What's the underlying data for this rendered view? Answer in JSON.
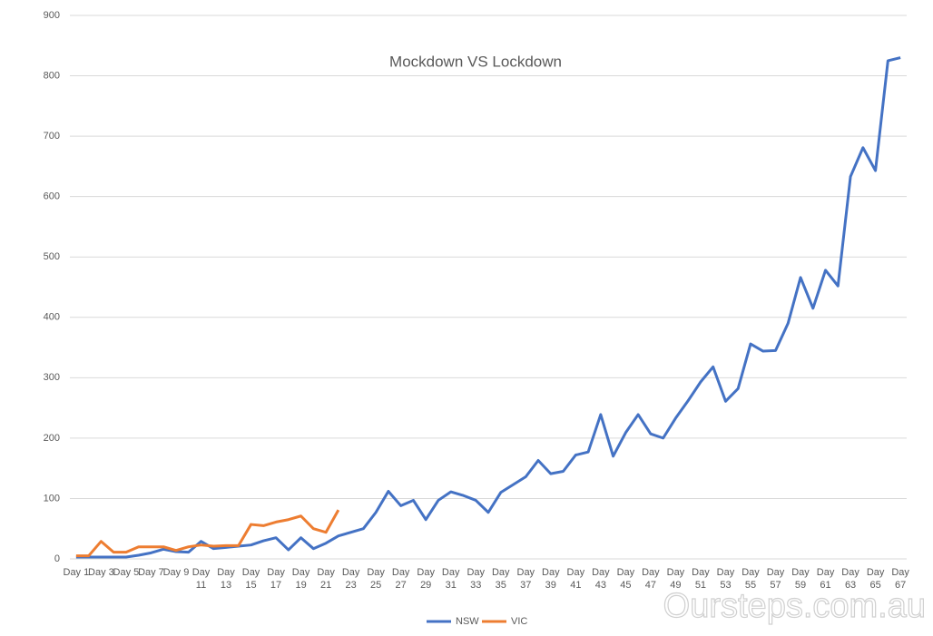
{
  "chart_data": {
    "type": "line",
    "title": "Mockdown VS Lockdown",
    "categories": [
      "Day 1",
      null,
      "Day 3",
      null,
      "Day 5",
      null,
      "Day 7",
      null,
      "Day 9",
      null,
      "Day 11",
      null,
      "Day 13",
      null,
      "Day 15",
      null,
      "Day 17",
      null,
      "Day 19",
      null,
      "Day 21",
      null,
      "Day 23",
      null,
      "Day 25",
      null,
      "Day 27",
      null,
      "Day 29",
      null,
      "Day 31",
      null,
      "Day 33",
      null,
      "Day 35",
      null,
      "Day 37",
      null,
      "Day 39",
      null,
      "Day 41",
      null,
      "Day 43",
      null,
      "Day 45",
      null,
      "Day 47",
      null,
      "Day 49",
      null,
      "Day 51",
      null,
      "Day 53",
      null,
      "Day 55",
      null,
      "Day 57",
      null,
      "Day 59",
      null,
      "Day 61",
      null,
      "Day 63",
      null,
      "Day 65",
      null,
      "Day 67"
    ],
    "series": [
      {
        "name": "NSW",
        "color": "#4472c4",
        "values": [
          3,
          3,
          3,
          3,
          3,
          6,
          10,
          16,
          12,
          11,
          29,
          17,
          19,
          21,
          23,
          30,
          35,
          15,
          35,
          17,
          26,
          38,
          44,
          50,
          77,
          112,
          88,
          97,
          65,
          97,
          111,
          105,
          97,
          77,
          110,
          123,
          136,
          163,
          141,
          145,
          172,
          177,
          239,
          170,
          209,
          239,
          207,
          200,
          233,
          262,
          293,
          318,
          261,
          282,
          356,
          344,
          345,
          390,
          466,
          415,
          478,
          452,
          633,
          681,
          643,
          825,
          830
        ]
      },
      {
        "name": "VIC",
        "color": "#ed7d31",
        "values": [
          5,
          5,
          29,
          11,
          11,
          20,
          20,
          20,
          14,
          20,
          23,
          21,
          22,
          22,
          57,
          55,
          61,
          65,
          71,
          50,
          44,
          81,
          null,
          null,
          null,
          null,
          null,
          null,
          null,
          null,
          null,
          null,
          null,
          null,
          null,
          null,
          null,
          null,
          null,
          null,
          null,
          null,
          null,
          null,
          null,
          null,
          null,
          null,
          null,
          null,
          null,
          null,
          null,
          null,
          null,
          null,
          null,
          null,
          null,
          null,
          null,
          null,
          null,
          null,
          null,
          null,
          null
        ]
      }
    ],
    "ylim": [
      0,
      900
    ],
    "yticks": [
      0,
      100,
      200,
      300,
      400,
      500,
      600,
      700,
      800,
      900
    ],
    "grid": true,
    "legend": "bottom",
    "watermark": "Oursteps.com.au"
  }
}
